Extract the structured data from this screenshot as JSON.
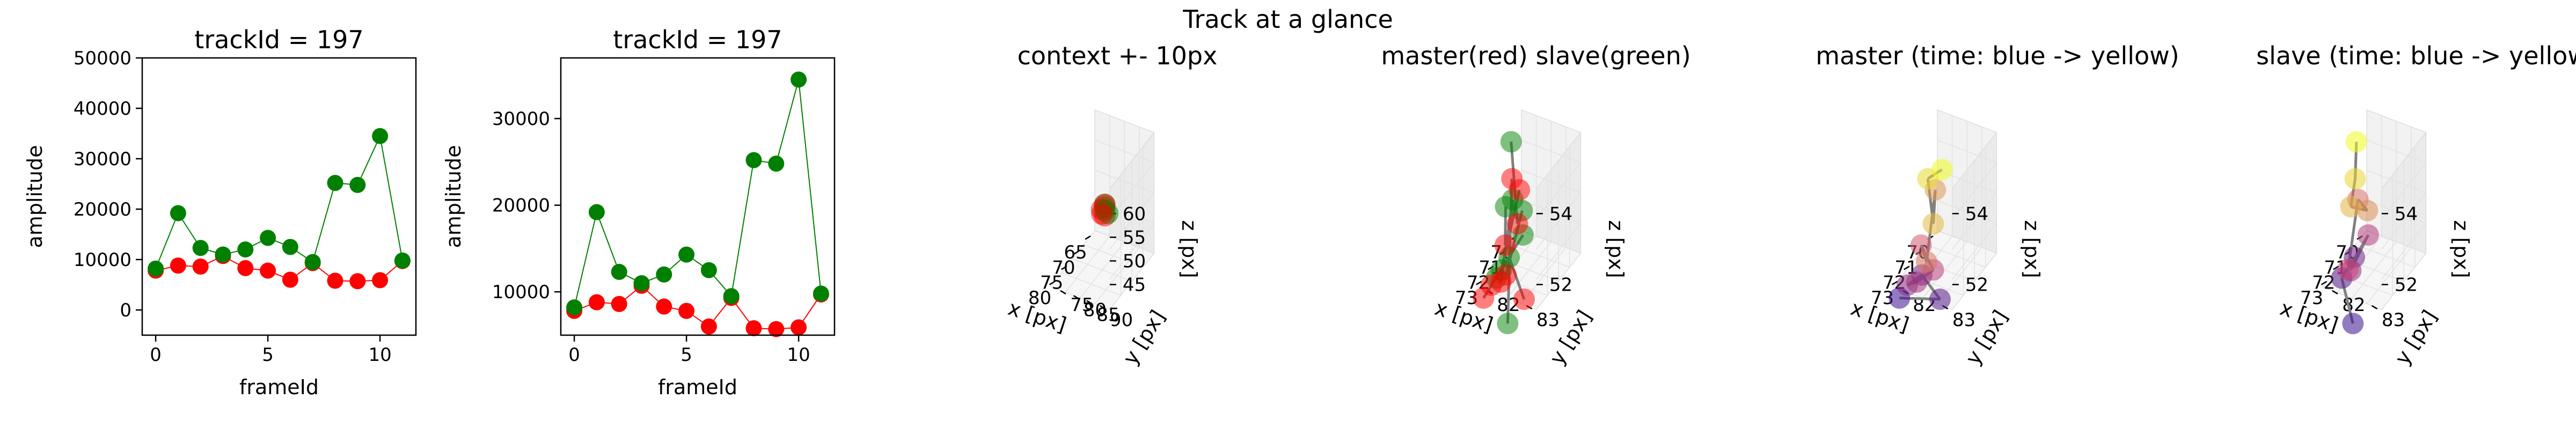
{
  "figure": {
    "suptitle": "Track at a glance"
  },
  "colors": {
    "master": "#ff0000",
    "slave": "#008000",
    "connector": "#808080",
    "time_start": "#3b0f8f",
    "time_end": "#f0f921"
  },
  "chart_data": [
    {
      "type": "line",
      "title": "trackId = 197",
      "xlabel": "frameId",
      "ylabel": "amplitude",
      "xlim": [
        -0.6,
        11.6
      ],
      "ylim": [
        -5000,
        50000
      ],
      "xticks": [
        "0",
        "5",
        "10"
      ],
      "yticks": [
        "0",
        "10000",
        "20000",
        "30000",
        "40000",
        "50000"
      ],
      "x": [
        0,
        1,
        2,
        3,
        4,
        5,
        6,
        7,
        8,
        9,
        10,
        11
      ],
      "series": [
        {
          "color": "#ff0000",
          "values": [
            7800,
            8800,
            8600,
            10700,
            8300,
            7800,
            6000,
            9300,
            5800,
            5700,
            5900,
            9700
          ]
        },
        {
          "color": "#008000",
          "values": [
            8200,
            19200,
            12300,
            11000,
            12000,
            14300,
            12500,
            9500,
            25200,
            24800,
            34500,
            9800
          ]
        }
      ]
    },
    {
      "type": "line",
      "title": "trackId = 197",
      "xlabel": "frameId",
      "ylabel": "amplitude",
      "xlim": [
        -0.6,
        11.6
      ],
      "ylim": [
        5000,
        37000
      ],
      "xticks": [
        "0",
        "5",
        "10"
      ],
      "yticks": [
        "10000",
        "20000",
        "30000"
      ],
      "x": [
        0,
        1,
        2,
        3,
        4,
        5,
        6,
        7,
        8,
        9,
        10,
        11
      ],
      "series": [
        {
          "color": "#ff0000",
          "values": [
            7800,
            8800,
            8600,
            10700,
            8300,
            7800,
            6000,
            9300,
            5800,
            5700,
            5900,
            9700
          ]
        },
        {
          "color": "#008000",
          "values": [
            8200,
            19200,
            12300,
            11000,
            12000,
            14300,
            12500,
            9500,
            25200,
            24800,
            34500,
            9800
          ]
        }
      ]
    },
    {
      "type": "scatter",
      "title": "context +- 10px",
      "xlabel": "x [px]",
      "ylabel": "y [px]",
      "zlabel": "z [px]",
      "xticks": [
        "65",
        "70",
        "75",
        "80"
      ],
      "yticks": [
        "75",
        "80",
        "85",
        "90"
      ],
      "zticks": [
        "45",
        "50",
        "55",
        "60"
      ],
      "points": [
        {
          "x": 71.0,
          "y": 82.0,
          "z": 52.0,
          "color": "#008000"
        },
        {
          "x": 71.5,
          "y": 82.5,
          "z": 53.0,
          "color": "#008000"
        },
        {
          "x": 72.0,
          "y": 83.0,
          "z": 51.0,
          "color": "#ff0000"
        },
        {
          "x": 72.5,
          "y": 82.2,
          "z": 52.5,
          "color": "#ff0000"
        },
        {
          "x": 70.5,
          "y": 82.8,
          "z": 50.5,
          "color": "#008000"
        },
        {
          "x": 72.2,
          "y": 83.2,
          "z": 53.5,
          "color": "#ff0000"
        },
        {
          "x": 71.2,
          "y": 82.3,
          "z": 51.5,
          "color": "#008000"
        },
        {
          "x": 72.8,
          "y": 82.6,
          "z": 51.8,
          "color": "#ff0000"
        }
      ]
    },
    {
      "type": "scatter",
      "title": "master(red) slave(green)",
      "xlabel": "x [px]",
      "ylabel": "y [px]",
      "zlabel": "z [px]",
      "xticks": [
        "70",
        "71",
        "72",
        "73"
      ],
      "yticks": [
        "82",
        "83"
      ],
      "zticks": [
        "52",
        "54"
      ],
      "master": [
        {
          "x": 72.6,
          "y": 82.4,
          "z": 54.3
        },
        {
          "x": 72.8,
          "y": 82.6,
          "z": 53.2
        },
        {
          "x": 72.5,
          "y": 82.2,
          "z": 52.3
        },
        {
          "x": 73.2,
          "y": 82.3,
          "z": 51.6
        },
        {
          "x": 73.0,
          "y": 82.0,
          "z": 51.3
        },
        {
          "x": 72.3,
          "y": 82.5,
          "z": 53.9
        },
        {
          "x": 72.0,
          "y": 81.5,
          "z": 50.3
        },
        {
          "x": 72.9,
          "y": 82.8,
          "z": 51.2
        },
        {
          "x": 73.1,
          "y": 82.4,
          "z": 51.8
        }
      ],
      "slave": [
        {
          "x": 70.3,
          "y": 81.6,
          "z": 48.9
        },
        {
          "x": 72.0,
          "y": 82.2,
          "z": 55.0
        },
        {
          "x": 71.8,
          "y": 82.0,
          "z": 53.0
        },
        {
          "x": 72.2,
          "y": 82.3,
          "z": 53.5
        },
        {
          "x": 72.9,
          "y": 82.1,
          "z": 51.5
        },
        {
          "x": 71.5,
          "y": 81.8,
          "z": 51.0
        },
        {
          "x": 72.0,
          "y": 82.5,
          "z": 52.5
        },
        {
          "x": 72.5,
          "y": 82.3,
          "z": 52.0
        },
        {
          "x": 72.4,
          "y": 82.6,
          "z": 53.4
        }
      ]
    },
    {
      "type": "scatter",
      "title": "master (time: blue -> yellow)",
      "xlabel": "x [px]",
      "ylabel": "y [px]",
      "zlabel": "z [px]",
      "xticks": [
        "70",
        "71",
        "72",
        "73"
      ],
      "yticks": [
        "82",
        "83"
      ],
      "zticks": [
        "52",
        "54"
      ],
      "points": [
        {
          "x": 72.0,
          "y": 81.5,
          "z": 50.3,
          "t": 0.0
        },
        {
          "x": 72.9,
          "y": 82.8,
          "z": 51.2,
          "t": 0.09
        },
        {
          "x": 73.1,
          "y": 82.4,
          "z": 51.8,
          "t": 0.18
        },
        {
          "x": 73.0,
          "y": 82.0,
          "z": 51.3,
          "t": 0.27
        },
        {
          "x": 73.2,
          "y": 82.3,
          "z": 51.6,
          "t": 0.36
        },
        {
          "x": 72.8,
          "y": 82.6,
          "z": 51.9,
          "t": 0.45
        },
        {
          "x": 72.5,
          "y": 82.2,
          "z": 52.3,
          "t": 0.55
        },
        {
          "x": 72.7,
          "y": 82.4,
          "z": 52.0,
          "t": 0.64
        },
        {
          "x": 72.3,
          "y": 82.5,
          "z": 53.9,
          "t": 0.73
        },
        {
          "x": 72.8,
          "y": 82.6,
          "z": 53.2,
          "t": 0.82
        },
        {
          "x": 72.6,
          "y": 82.4,
          "z": 54.3,
          "t": 0.91
        },
        {
          "x": 72.4,
          "y": 82.7,
          "z": 54.6,
          "t": 1.0
        }
      ]
    },
    {
      "type": "scatter",
      "title": "slave (time: blue -> yellow)",
      "xlabel": "x [px]",
      "ylabel": "y [px]",
      "zlabel": "z [px]",
      "xticks": [
        "70",
        "71",
        "72",
        "73"
      ],
      "yticks": [
        "82",
        "83"
      ],
      "zticks": [
        "52",
        "54"
      ],
      "points": [
        {
          "x": 70.3,
          "y": 81.6,
          "z": 48.9,
          "t": 0.0
        },
        {
          "x": 72.9,
          "y": 82.1,
          "z": 51.5,
          "t": 0.1
        },
        {
          "x": 72.5,
          "y": 82.3,
          "z": 52.0,
          "t": 0.2
        },
        {
          "x": 71.8,
          "y": 82.0,
          "z": 51.2,
          "t": 0.3
        },
        {
          "x": 72.0,
          "y": 82.5,
          "z": 52.5,
          "t": 0.4
        },
        {
          "x": 72.7,
          "y": 82.2,
          "z": 51.7,
          "t": 0.5
        },
        {
          "x": 72.2,
          "y": 82.3,
          "z": 53.5,
          "t": 0.6
        },
        {
          "x": 72.4,
          "y": 82.6,
          "z": 53.4,
          "t": 0.7
        },
        {
          "x": 71.8,
          "y": 82.0,
          "z": 53.0,
          "t": 0.8
        },
        {
          "x": 72.1,
          "y": 82.2,
          "z": 54.0,
          "t": 0.9
        },
        {
          "x": 72.0,
          "y": 82.2,
          "z": 55.0,
          "t": 1.0
        }
      ]
    }
  ]
}
